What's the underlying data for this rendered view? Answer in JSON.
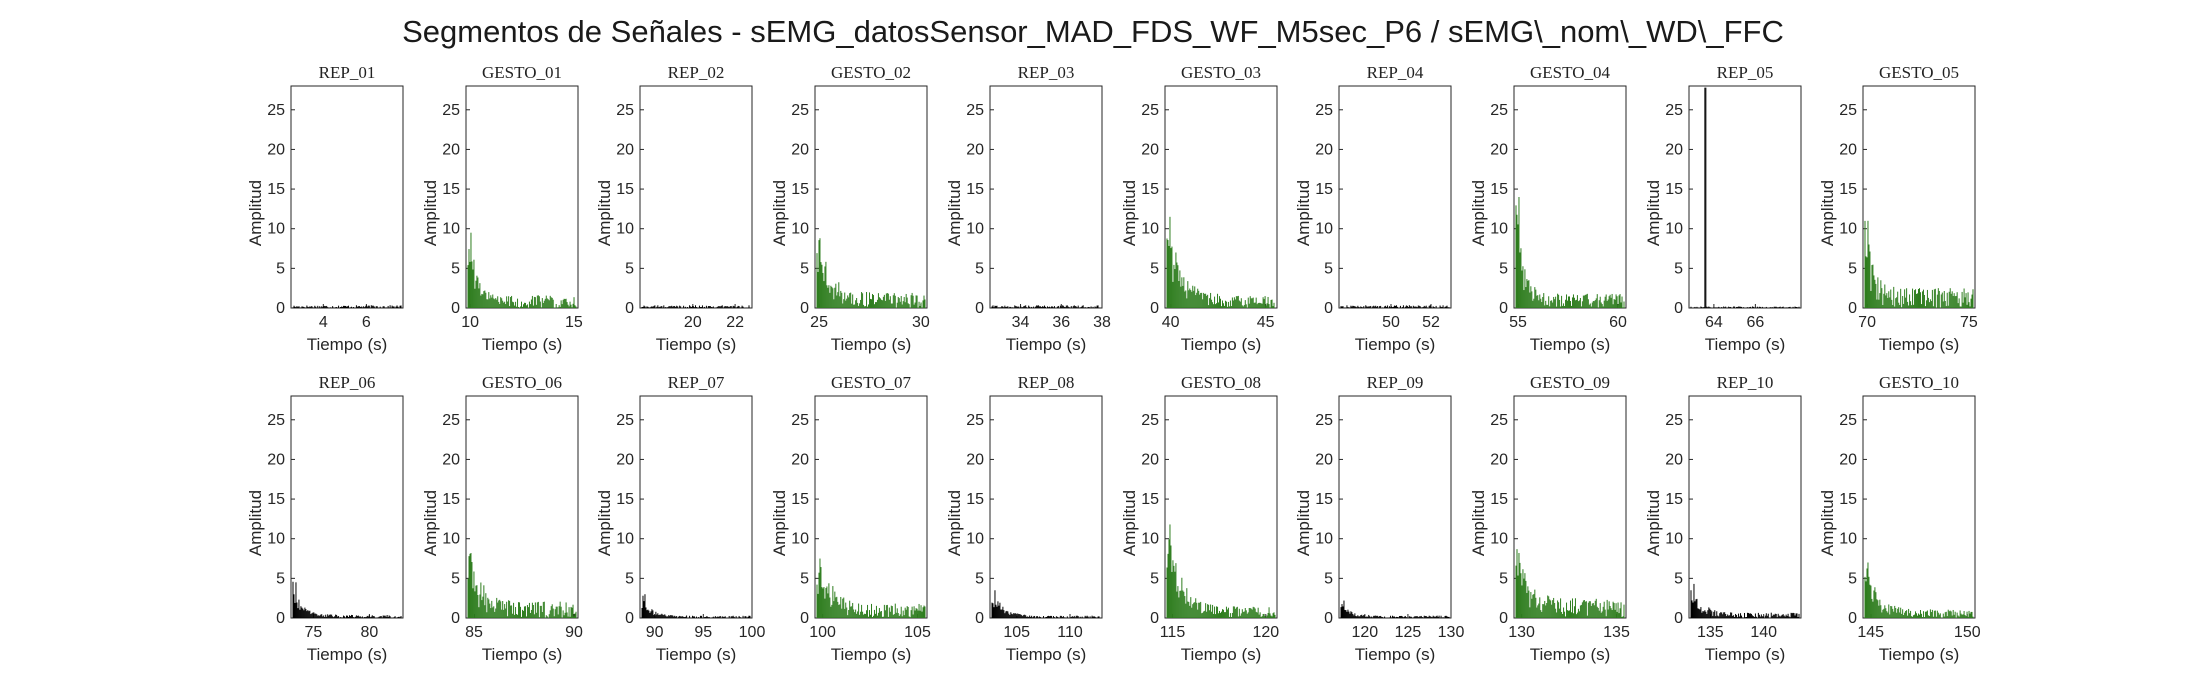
{
  "figure": {
    "title": "Segmentos de Señales - sEMG_datosSensor_MAD_FDS_WF_M5sec_P6 / sEMG\\_nom\\_WD\\_FFC",
    "colors": {
      "rep": "#000000",
      "gesto": "#2e7d1e",
      "axis": "#262626"
    }
  },
  "chart_data": [
    {
      "type": "bar",
      "title": "REP_01",
      "kind": "rep",
      "xlabel": "Tiempo (s)",
      "ylabel": "Amplitud",
      "xlim": [
        2.5,
        7.7
      ],
      "ylim": [
        0,
        28
      ],
      "xticks": [
        4,
        6
      ],
      "yticks": [
        0,
        5,
        10,
        15,
        20,
        25
      ],
      "approx_peak": 0.4,
      "decay": 0,
      "noise": 0.35
    },
    {
      "type": "bar",
      "title": "GESTO_01",
      "kind": "gesto",
      "xlabel": "Tiempo (s)",
      "ylabel": "Amplitud",
      "xlim": [
        9.8,
        15.2
      ],
      "ylim": [
        0,
        28
      ],
      "xticks": [
        10,
        15
      ],
      "yticks": [
        0,
        5,
        10,
        15,
        20,
        25
      ],
      "approx_peak": 9.5,
      "decay": 3.5,
      "noise": 1.6
    },
    {
      "type": "bar",
      "title": "REP_02",
      "kind": "rep",
      "xlabel": "Tiempo (s)",
      "ylabel": "Amplitud",
      "xlim": [
        17.5,
        22.8
      ],
      "ylim": [
        0,
        28
      ],
      "xticks": [
        20,
        22
      ],
      "yticks": [
        0,
        5,
        10,
        15,
        20,
        25
      ],
      "approx_peak": 0.4,
      "decay": 0,
      "noise": 0.35
    },
    {
      "type": "bar",
      "title": "GESTO_02",
      "kind": "gesto",
      "xlabel": "Tiempo (s)",
      "ylabel": "Amplitud",
      "xlim": [
        24.8,
        30.3
      ],
      "ylim": [
        0,
        28
      ],
      "xticks": [
        25,
        30
      ],
      "yticks": [
        0,
        5,
        10,
        15,
        20,
        25
      ],
      "approx_peak": 8.8,
      "decay": 3.0,
      "noise": 1.9
    },
    {
      "type": "bar",
      "title": "REP_03",
      "kind": "rep",
      "xlabel": "Tiempo (s)",
      "ylabel": "Amplitud",
      "xlim": [
        32.5,
        38
      ],
      "ylim": [
        0,
        28
      ],
      "xticks": [
        34,
        36,
        38
      ],
      "yticks": [
        0,
        5,
        10,
        15,
        20,
        25
      ],
      "approx_peak": 0.4,
      "decay": 0,
      "noise": 0.35
    },
    {
      "type": "bar",
      "title": "GESTO_03",
      "kind": "gesto",
      "xlabel": "Tiempo (s)",
      "ylabel": "Amplitud",
      "xlim": [
        39.7,
        45.6
      ],
      "ylim": [
        0,
        28
      ],
      "xticks": [
        40,
        45
      ],
      "yticks": [
        0,
        5,
        10,
        15,
        20,
        25
      ],
      "approx_peak": 11.5,
      "decay": 2.5,
      "noise": 1.5
    },
    {
      "type": "bar",
      "title": "REP_04",
      "kind": "rep",
      "xlabel": "Tiempo (s)",
      "ylabel": "Amplitud",
      "xlim": [
        47.4,
        53
      ],
      "ylim": [
        0,
        28
      ],
      "xticks": [
        50,
        52
      ],
      "yticks": [
        0,
        5,
        10,
        15,
        20,
        25
      ],
      "approx_peak": 0.4,
      "decay": 0,
      "noise": 0.35
    },
    {
      "type": "bar",
      "title": "GESTO_04",
      "kind": "gesto",
      "xlabel": "Tiempo (s)",
      "ylabel": "Amplitud",
      "xlim": [
        54.8,
        60.4
      ],
      "ylim": [
        0,
        28
      ],
      "xticks": [
        55,
        60
      ],
      "yticks": [
        0,
        5,
        10,
        15,
        20,
        25
      ],
      "approx_peak": 14,
      "decay": 5,
      "noise": 1.8
    },
    {
      "type": "bar",
      "title": "REP_05",
      "kind": "rep",
      "xlabel": "Tiempo (s)",
      "ylabel": "Amplitud",
      "xlim": [
        62.8,
        68.2
      ],
      "ylim": [
        0,
        28
      ],
      "xticks": [
        64,
        66
      ],
      "yticks": [
        0,
        5,
        10,
        15,
        20,
        25
      ],
      "approx_peak": 27.8,
      "spike_at": 63.5,
      "decay": 0,
      "noise": 0.2
    },
    {
      "type": "bar",
      "title": "GESTO_05",
      "kind": "gesto",
      "xlabel": "Tiempo (s)",
      "ylabel": "Amplitud",
      "xlim": [
        69.8,
        75.3
      ],
      "ylim": [
        0,
        28
      ],
      "xticks": [
        70,
        75
      ],
      "yticks": [
        0,
        5,
        10,
        15,
        20,
        25
      ],
      "approx_peak": 11,
      "decay": 5,
      "noise": 2.6
    },
    {
      "type": "bar",
      "title": "REP_06",
      "kind": "rep",
      "xlabel": "Tiempo (s)",
      "ylabel": "Amplitud",
      "xlim": [
        73,
        83
      ],
      "ylim": [
        0,
        28
      ],
      "xticks": [
        75,
        80
      ],
      "yticks": [
        0,
        5,
        10,
        15,
        20,
        25
      ],
      "approx_peak": 4.5,
      "decay": 4,
      "noise": 0.4
    },
    {
      "type": "bar",
      "title": "GESTO_06",
      "kind": "gesto",
      "xlabel": "Tiempo (s)",
      "ylabel": "Amplitud",
      "xlim": [
        84.6,
        90.2
      ],
      "ylim": [
        0,
        28
      ],
      "xticks": [
        85,
        90
      ],
      "yticks": [
        0,
        5,
        10,
        15,
        20,
        25
      ],
      "approx_peak": 8.2,
      "decay": 3,
      "noise": 2.2
    },
    {
      "type": "bar",
      "title": "REP_07",
      "kind": "rep",
      "xlabel": "Tiempo (s)",
      "ylabel": "Amplitud",
      "xlim": [
        88.5,
        100
      ],
      "ylim": [
        0,
        28
      ],
      "xticks": [
        90,
        95,
        100
      ],
      "yticks": [
        0,
        5,
        10,
        15,
        20,
        25
      ],
      "approx_peak": 3,
      "decay": 4,
      "noise": 0.3
    },
    {
      "type": "bar",
      "title": "GESTO_07",
      "kind": "gesto",
      "xlabel": "Tiempo (s)",
      "ylabel": "Amplitud",
      "xlim": [
        99.6,
        105.5
      ],
      "ylim": [
        0,
        28
      ],
      "xticks": [
        100,
        105
      ],
      "yticks": [
        0,
        5,
        10,
        15,
        20,
        25
      ],
      "approx_peak": 7.5,
      "decay": 2.5,
      "noise": 1.8
    },
    {
      "type": "bar",
      "title": "REP_08",
      "kind": "rep",
      "xlabel": "Tiempo (s)",
      "ylabel": "Amplitud",
      "xlim": [
        102.5,
        113
      ],
      "ylim": [
        0,
        28
      ],
      "xticks": [
        105,
        110
      ],
      "yticks": [
        0,
        5,
        10,
        15,
        20,
        25
      ],
      "approx_peak": 3.5,
      "decay": 3,
      "noise": 0.3
    },
    {
      "type": "bar",
      "title": "GESTO_08",
      "kind": "gesto",
      "xlabel": "Tiempo (s)",
      "ylabel": "Amplitud",
      "xlim": [
        114.6,
        120.6
      ],
      "ylim": [
        0,
        28
      ],
      "xticks": [
        115,
        120
      ],
      "yticks": [
        0,
        5,
        10,
        15,
        20,
        25
      ],
      "approx_peak": 11.8,
      "decay": 2.5,
      "noise": 1.5
    },
    {
      "type": "bar",
      "title": "REP_09",
      "kind": "rep",
      "xlabel": "Tiempo (s)",
      "ylabel": "Amplitud",
      "xlim": [
        117,
        130
      ],
      "ylim": [
        0,
        28
      ],
      "xticks": [
        120,
        125,
        130
      ],
      "yticks": [
        0,
        5,
        10,
        15,
        20,
        25
      ],
      "approx_peak": 2.2,
      "decay": 4,
      "noise": 0.3
    },
    {
      "type": "bar",
      "title": "GESTO_09",
      "kind": "gesto",
      "xlabel": "Tiempo (s)",
      "ylabel": "Amplitud",
      "xlim": [
        129.6,
        135.5
      ],
      "ylim": [
        0,
        28
      ],
      "xticks": [
        130,
        135
      ],
      "yticks": [
        0,
        5,
        10,
        15,
        20,
        25
      ],
      "approx_peak": 8.2,
      "decay": 2.5,
      "noise": 2.4
    },
    {
      "type": "bar",
      "title": "REP_10",
      "kind": "rep",
      "xlabel": "Tiempo (s)",
      "ylabel": "Amplitud",
      "xlim": [
        133,
        143.5
      ],
      "ylim": [
        0,
        28
      ],
      "xticks": [
        135,
        140
      ],
      "yticks": [
        0,
        5,
        10,
        15,
        20,
        25
      ],
      "approx_peak": 4.3,
      "decay": 3.5,
      "noise": 0.7
    },
    {
      "type": "bar",
      "title": "GESTO_10",
      "kind": "gesto",
      "xlabel": "Tiempo (s)",
      "ylabel": "Amplitud",
      "xlim": [
        144.6,
        150.4
      ],
      "ylim": [
        0,
        28
      ],
      "xticks": [
        145,
        150
      ],
      "yticks": [
        0,
        5,
        10,
        15,
        20,
        25
      ],
      "approx_peak": 7,
      "decay": 3,
      "noise": 1.1
    }
  ]
}
